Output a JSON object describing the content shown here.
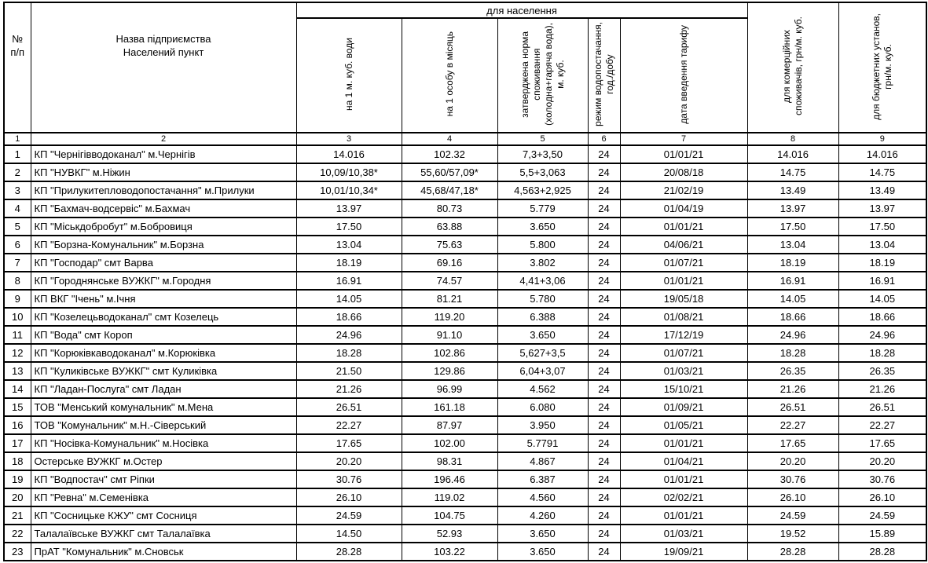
{
  "table": {
    "headers": {
      "num": "№\nп/п",
      "name": "Назва підприємства\nНаселений пункт",
      "group": "для населення",
      "per_m3": "на 1 м. куб. води",
      "per_person": "на 1 особу в місяць",
      "norm": "затверджена  норма\nспоживання\n(холодна+гаряча вода),\nм. куб.",
      "regime": "режим водопостачання,\nгод./добу",
      "date": "дата введення тарифу",
      "commercial": "для комерційних\nспоживачів, грн/м. куб.",
      "budget": "для бюджетних установ,\nгрн/м. куб."
    },
    "column_numbers": [
      "1",
      "2",
      "3",
      "4",
      "5",
      "6",
      "7",
      "8",
      "9"
    ],
    "column_keys": [
      "num",
      "name",
      "per_m3",
      "per_person",
      "norm",
      "regime",
      "date",
      "commercial",
      "budget"
    ],
    "rows": [
      [
        "1",
        "КП \"Чернігівводоканал\" м.Чернігів",
        "14.016",
        "102.32",
        "7,3+3,50",
        "24",
        "01/01/21",
        "14.016",
        "14.016"
      ],
      [
        "2",
        "КП \"НУВКГ\" м.Ніжин",
        "10,09/10,38*",
        "55,60/57,09*",
        "5,5+3,063",
        "24",
        "20/08/18",
        "14.75",
        "14.75"
      ],
      [
        "3",
        "КП \"Прилукитепловодопостачання\" м.Прилуки",
        "10,01/10,34*",
        "45,68/47,18*",
        "4,563+2,925",
        "24",
        "21/02/19",
        "13.49",
        "13.49"
      ],
      [
        "4",
        "КП \"Бахмач-водсервіс\" м.Бахмач",
        "13.97",
        "80.73",
        "5.779",
        "24",
        "01/04/19",
        "13.97",
        "13.97"
      ],
      [
        "5",
        "КП \"Міськдобробут\" м.Бобровиця",
        "17.50",
        "63.88",
        "3.650",
        "24",
        "01/01/21",
        "17.50",
        "17.50"
      ],
      [
        "6",
        "КП \"Борзна-Комунальник\" м.Борзна",
        "13.04",
        "75.63",
        "5.800",
        "24",
        "04/06/21",
        "13.04",
        "13.04"
      ],
      [
        "7",
        "КП \"Господар\" смт Варва",
        "18.19",
        "69.16",
        "3.802",
        "24",
        "01/07/21",
        "18.19",
        "18.19"
      ],
      [
        "8",
        "КП \"Городнянське ВУЖКГ\"  м.Городня",
        "16.91",
        "74.57",
        "4,41+3,06",
        "24",
        "01/01/21",
        "16.91",
        "16.91"
      ],
      [
        "9",
        "КП ВКГ \"Ічень\" м.Ічня",
        "14.05",
        "81.21",
        "5.780",
        "24",
        "19/05/18",
        "14.05",
        "14.05"
      ],
      [
        "10",
        "КП \"Козелецьводоканал\" смт Козелець",
        "18.66",
        "119.20",
        "6.388",
        "24",
        "01/08/21",
        "18.66",
        "18.66"
      ],
      [
        "11",
        "КП \"Вода\" смт Короп",
        "24.96",
        "91.10",
        "3.650",
        "24",
        "17/12/19",
        "24.96",
        "24.96"
      ],
      [
        "12",
        "КП \"Корюківкаводоканал\" м.Корюківка",
        "18.28",
        "102.86",
        "5,627+3,5",
        "24",
        "01/07/21",
        "18.28",
        "18.28"
      ],
      [
        "13",
        "КП \"Куликівське ВУЖКГ\" смт Куликівка",
        "21.50",
        "129.86",
        "6,04+3,07",
        "24",
        "01/03/21",
        "26.35",
        "26.35"
      ],
      [
        "14",
        "КП \"Ладан-Послуга\" смт Ладан",
        "21.26",
        "96.99",
        "4.562",
        "24",
        "15/10/21",
        "21.26",
        "21.26"
      ],
      [
        "15",
        "ТОВ \"Менський комунальник\" м.Мена",
        "26.51",
        "161.18",
        "6.080",
        "24",
        "01/09/21",
        "26.51",
        "26.51"
      ],
      [
        "16",
        "ТОВ \"Комунальник\"  м.Н.-Сіверський",
        "22.27",
        "87.97",
        "3.950",
        "24",
        "01/05/21",
        "22.27",
        "22.27"
      ],
      [
        "17",
        "КП \"Носівка-Комунальник\" м.Носівка",
        "17.65",
        "102.00",
        "5.7791",
        "24",
        "01/01/21",
        "17.65",
        "17.65"
      ],
      [
        "18",
        "Остерське ВУЖКГ м.Остер",
        "20.20",
        "98.31",
        "4.867",
        "24",
        "01/04/21",
        "20.20",
        "20.20"
      ],
      [
        "19",
        "КП \"Водпостач\" смт Ріпки",
        "30.76",
        "196.46",
        "6.387",
        "24",
        "01/01/21",
        "30.76",
        "30.76"
      ],
      [
        "20",
        "КП \"Ревна\" м.Семенівка",
        "26.10",
        "119.02",
        "4.560",
        "24",
        "02/02/21",
        "26.10",
        "26.10"
      ],
      [
        "21",
        "КП \"Сосницьке КЖУ\" смт Сосниця",
        "24.59",
        "104.75",
        "4.260",
        "24",
        "01/01/21",
        "24.59",
        "24.59"
      ],
      [
        "22",
        "Талалаївське ВУЖКГ смт Талалаївка",
        "14.50",
        "52.93",
        "3.650",
        "24",
        "01/03/21",
        "19.52",
        "15.89"
      ],
      [
        "23",
        "ПрАТ \"Комунальник\" м.Сновськ",
        "28.28",
        "103.22",
        "3.650",
        "24",
        "19/09/21",
        "28.28",
        "28.28"
      ]
    ]
  }
}
